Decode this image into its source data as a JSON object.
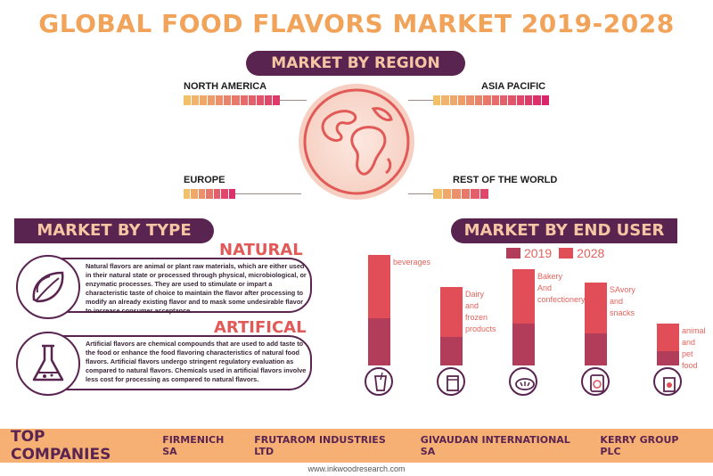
{
  "title": "GLOBAL FOOD FLAVORS MARKET 2019-2028",
  "region_section": {
    "heading": "MARKET BY REGION",
    "regions": [
      "NORTH AMERICA",
      "ASIA PACIFIC",
      "EUROPE",
      "REST OF THE WORLD"
    ]
  },
  "type_section": {
    "heading": "MARKET BY TYPE",
    "natural": {
      "title": "NATURAL",
      "text": "Natural flavors are animal or plant raw materials, which are either used in their natural state or processed through physical, microbiological, or enzymatic processes. They are used to stimulate or impart a characteristic taste of choice to maintain the flavor after processing to modify an already existing flavor and to mask some undesirable flavor to increase consumer acceptance."
    },
    "artificial": {
      "title": "ARTIFICAL",
      "text": "Artificial flavors are chemical compounds that are used to add taste to the food or enhance the food flavoring characteristics of natural food flavors. Artificial flavors undergo stringent regulatory evaluation as compared to natural flavors. Chemicals used in artificial flavors involve less cost for processing as compared to natural flavors."
    }
  },
  "enduser_section": {
    "heading": "MARKET BY END USER",
    "legend": [
      "2019",
      "2028"
    ],
    "colors": {
      "2019": "#b23d5a",
      "2028": "#e24e58"
    },
    "bars": [
      {
        "label_lines": [
          "beverages"
        ],
        "v2019": 0.43,
        "v2028": 1.0,
        "icon": "beverage-icon"
      },
      {
        "label_lines": [
          "Dairy",
          "and",
          "frozen",
          "products"
        ],
        "v2019": 0.26,
        "v2028": 0.71,
        "icon": "dairy-icon"
      },
      {
        "label_lines": [
          "Bakery",
          "And",
          "confectionery"
        ],
        "v2019": 0.38,
        "v2028": 0.87,
        "icon": "bakery-icon"
      },
      {
        "label_lines": [
          "SAvory",
          "and",
          "snacks"
        ],
        "v2019": 0.29,
        "v2028": 0.75,
        "icon": "savory-icon"
      },
      {
        "label_lines": [
          "animal",
          "and",
          "pet",
          "food"
        ],
        "v2019": 0.13,
        "v2028": 0.38,
        "icon": "pet-food-icon"
      }
    ]
  },
  "companies": {
    "label": "TOP COMPANIES",
    "list": [
      "FIRMENICH SA",
      "FRUTAROM INDUSTRIES LTD",
      "GIVAUDAN INTERNATIONAL SA",
      "KERRY GROUP PLC"
    ]
  },
  "website": "www.inkwoodresearch.com"
}
